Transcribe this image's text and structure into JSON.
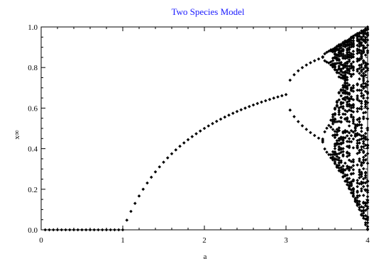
{
  "chart_data": {
    "type": "scatter",
    "title": "Two Species Model",
    "xlabel": "a",
    "ylabel": "x∞",
    "xlim": [
      0,
      4
    ],
    "ylim": [
      0,
      1
    ],
    "xticks": [
      "0",
      "1",
      "2",
      "3",
      "4"
    ],
    "yticks": [
      "0.0",
      "0.2",
      "0.4",
      "0.6",
      "0.8",
      "1.0"
    ],
    "grid": false,
    "marker": "diamond",
    "colors": {
      "title": "#1a1aff",
      "points": "#000000",
      "axes": "#000000",
      "background": "#ffffff"
    },
    "series": [
      {
        "description_shape": "logistic-map bifurcation diagram",
        "points_fixed_zero": [
          [
            0.05,
            0
          ],
          [
            0.1,
            0
          ],
          [
            0.15,
            0
          ],
          [
            0.2,
            0
          ],
          [
            0.25,
            0
          ],
          [
            0.3,
            0
          ],
          [
            0.35,
            0
          ],
          [
            0.4,
            0
          ],
          [
            0.45,
            0
          ],
          [
            0.5,
            0
          ],
          [
            0.55,
            0
          ],
          [
            0.6,
            0
          ],
          [
            0.65,
            0
          ],
          [
            0.7,
            0
          ],
          [
            0.75,
            0
          ],
          [
            0.8,
            0
          ],
          [
            0.85,
            0
          ],
          [
            0.9,
            0
          ],
          [
            0.95,
            0
          ],
          [
            1.0,
            0
          ]
        ],
        "points_branch_x_start": 1.0,
        "points_branch_x_end": 3.0,
        "points_branch_x_step": 0.05,
        "period2_x_start": 3.0,
        "period2_x_end": 3.45,
        "period2_x_step": 0.05,
        "chaotic_x_start": 3.45,
        "chaotic_x_end": 4.0,
        "chaotic_x_step": 0.025
      }
    ]
  }
}
